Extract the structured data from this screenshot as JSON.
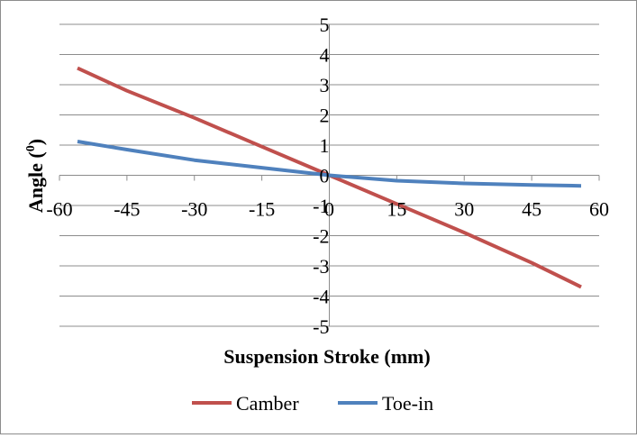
{
  "chart_data": {
    "type": "line",
    "xlabel": "Suspension Stroke (mm)",
    "ylabel_main": "Angle (",
    "ylabel_sup": "0",
    "ylabel_close": ")",
    "xlim": [
      -60,
      60
    ],
    "ylim": [
      -5,
      5
    ],
    "x_ticks": [
      "-60",
      "-45",
      "-30",
      "-15",
      "0",
      "15",
      "30",
      "45",
      "60"
    ],
    "x_tick_values": [
      -60,
      -45,
      -30,
      -15,
      0,
      15,
      30,
      45,
      60
    ],
    "y_ticks": [
      "5",
      "4",
      "3",
      "2",
      "1",
      "0",
      "-1",
      "-2",
      "-3",
      "-4",
      "-5"
    ],
    "y_tick_values": [
      5,
      4,
      3,
      2,
      1,
      0,
      -1,
      -2,
      -3,
      -4,
      -5
    ],
    "grid": "horizontal",
    "legend_position": "bottom",
    "series": [
      {
        "name": "Camber",
        "color": "#c0504d",
        "x": [
          -56,
          -45,
          -30,
          -15,
          0,
          15,
          30,
          45,
          56
        ],
        "y": [
          3.55,
          2.8,
          1.9,
          0.95,
          0.0,
          -0.95,
          -1.9,
          -2.9,
          -3.7
        ]
      },
      {
        "name": "Toe-in",
        "color": "#4f81bd",
        "x": [
          -56,
          -45,
          -30,
          -15,
          0,
          15,
          30,
          45,
          56
        ],
        "y": [
          1.12,
          0.85,
          0.5,
          0.25,
          0.0,
          -0.18,
          -0.27,
          -0.32,
          -0.35
        ]
      }
    ]
  }
}
